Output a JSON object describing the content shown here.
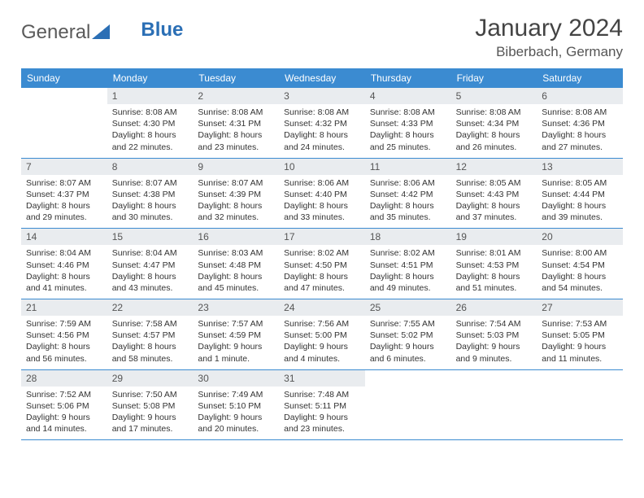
{
  "branding": {
    "logo_general": "General",
    "logo_blue": "Blue",
    "logo_color_general": "#5a5a5a",
    "logo_color_blue": "#2b6fb5",
    "triangle_color": "#2b6fb5"
  },
  "title": {
    "month": "January 2024",
    "location": "Biberbach, Germany",
    "month_fontsize": 30,
    "location_fontsize": 17,
    "text_color": "#444"
  },
  "calendar": {
    "header_bg": "#3b8bd1",
    "header_fg": "#ffffff",
    "daynum_bg": "#e9ecef",
    "daynum_fg": "#555555",
    "border_color": "#3b8bd1",
    "cell_text_color": "#333333",
    "cell_fontsize": 10.5,
    "days_of_week": [
      "Sunday",
      "Monday",
      "Tuesday",
      "Wednesday",
      "Thursday",
      "Friday",
      "Saturday"
    ],
    "weeks": [
      [
        {
          "n": "",
          "sunrise": "",
          "sunset": "",
          "daylight": ""
        },
        {
          "n": "1",
          "sunrise": "Sunrise: 8:08 AM",
          "sunset": "Sunset: 4:30 PM",
          "daylight": "Daylight: 8 hours and 22 minutes."
        },
        {
          "n": "2",
          "sunrise": "Sunrise: 8:08 AM",
          "sunset": "Sunset: 4:31 PM",
          "daylight": "Daylight: 8 hours and 23 minutes."
        },
        {
          "n": "3",
          "sunrise": "Sunrise: 8:08 AM",
          "sunset": "Sunset: 4:32 PM",
          "daylight": "Daylight: 8 hours and 24 minutes."
        },
        {
          "n": "4",
          "sunrise": "Sunrise: 8:08 AM",
          "sunset": "Sunset: 4:33 PM",
          "daylight": "Daylight: 8 hours and 25 minutes."
        },
        {
          "n": "5",
          "sunrise": "Sunrise: 8:08 AM",
          "sunset": "Sunset: 4:34 PM",
          "daylight": "Daylight: 8 hours and 26 minutes."
        },
        {
          "n": "6",
          "sunrise": "Sunrise: 8:08 AM",
          "sunset": "Sunset: 4:36 PM",
          "daylight": "Daylight: 8 hours and 27 minutes."
        }
      ],
      [
        {
          "n": "7",
          "sunrise": "Sunrise: 8:07 AM",
          "sunset": "Sunset: 4:37 PM",
          "daylight": "Daylight: 8 hours and 29 minutes."
        },
        {
          "n": "8",
          "sunrise": "Sunrise: 8:07 AM",
          "sunset": "Sunset: 4:38 PM",
          "daylight": "Daylight: 8 hours and 30 minutes."
        },
        {
          "n": "9",
          "sunrise": "Sunrise: 8:07 AM",
          "sunset": "Sunset: 4:39 PM",
          "daylight": "Daylight: 8 hours and 32 minutes."
        },
        {
          "n": "10",
          "sunrise": "Sunrise: 8:06 AM",
          "sunset": "Sunset: 4:40 PM",
          "daylight": "Daylight: 8 hours and 33 minutes."
        },
        {
          "n": "11",
          "sunrise": "Sunrise: 8:06 AM",
          "sunset": "Sunset: 4:42 PM",
          "daylight": "Daylight: 8 hours and 35 minutes."
        },
        {
          "n": "12",
          "sunrise": "Sunrise: 8:05 AM",
          "sunset": "Sunset: 4:43 PM",
          "daylight": "Daylight: 8 hours and 37 minutes."
        },
        {
          "n": "13",
          "sunrise": "Sunrise: 8:05 AM",
          "sunset": "Sunset: 4:44 PM",
          "daylight": "Daylight: 8 hours and 39 minutes."
        }
      ],
      [
        {
          "n": "14",
          "sunrise": "Sunrise: 8:04 AM",
          "sunset": "Sunset: 4:46 PM",
          "daylight": "Daylight: 8 hours and 41 minutes."
        },
        {
          "n": "15",
          "sunrise": "Sunrise: 8:04 AM",
          "sunset": "Sunset: 4:47 PM",
          "daylight": "Daylight: 8 hours and 43 minutes."
        },
        {
          "n": "16",
          "sunrise": "Sunrise: 8:03 AM",
          "sunset": "Sunset: 4:48 PM",
          "daylight": "Daylight: 8 hours and 45 minutes."
        },
        {
          "n": "17",
          "sunrise": "Sunrise: 8:02 AM",
          "sunset": "Sunset: 4:50 PM",
          "daylight": "Daylight: 8 hours and 47 minutes."
        },
        {
          "n": "18",
          "sunrise": "Sunrise: 8:02 AM",
          "sunset": "Sunset: 4:51 PM",
          "daylight": "Daylight: 8 hours and 49 minutes."
        },
        {
          "n": "19",
          "sunrise": "Sunrise: 8:01 AM",
          "sunset": "Sunset: 4:53 PM",
          "daylight": "Daylight: 8 hours and 51 minutes."
        },
        {
          "n": "20",
          "sunrise": "Sunrise: 8:00 AM",
          "sunset": "Sunset: 4:54 PM",
          "daylight": "Daylight: 8 hours and 54 minutes."
        }
      ],
      [
        {
          "n": "21",
          "sunrise": "Sunrise: 7:59 AM",
          "sunset": "Sunset: 4:56 PM",
          "daylight": "Daylight: 8 hours and 56 minutes."
        },
        {
          "n": "22",
          "sunrise": "Sunrise: 7:58 AM",
          "sunset": "Sunset: 4:57 PM",
          "daylight": "Daylight: 8 hours and 58 minutes."
        },
        {
          "n": "23",
          "sunrise": "Sunrise: 7:57 AM",
          "sunset": "Sunset: 4:59 PM",
          "daylight": "Daylight: 9 hours and 1 minute."
        },
        {
          "n": "24",
          "sunrise": "Sunrise: 7:56 AM",
          "sunset": "Sunset: 5:00 PM",
          "daylight": "Daylight: 9 hours and 4 minutes."
        },
        {
          "n": "25",
          "sunrise": "Sunrise: 7:55 AM",
          "sunset": "Sunset: 5:02 PM",
          "daylight": "Daylight: 9 hours and 6 minutes."
        },
        {
          "n": "26",
          "sunrise": "Sunrise: 7:54 AM",
          "sunset": "Sunset: 5:03 PM",
          "daylight": "Daylight: 9 hours and 9 minutes."
        },
        {
          "n": "27",
          "sunrise": "Sunrise: 7:53 AM",
          "sunset": "Sunset: 5:05 PM",
          "daylight": "Daylight: 9 hours and 11 minutes."
        }
      ],
      [
        {
          "n": "28",
          "sunrise": "Sunrise: 7:52 AM",
          "sunset": "Sunset: 5:06 PM",
          "daylight": "Daylight: 9 hours and 14 minutes."
        },
        {
          "n": "29",
          "sunrise": "Sunrise: 7:50 AM",
          "sunset": "Sunset: 5:08 PM",
          "daylight": "Daylight: 9 hours and 17 minutes."
        },
        {
          "n": "30",
          "sunrise": "Sunrise: 7:49 AM",
          "sunset": "Sunset: 5:10 PM",
          "daylight": "Daylight: 9 hours and 20 minutes."
        },
        {
          "n": "31",
          "sunrise": "Sunrise: 7:48 AM",
          "sunset": "Sunset: 5:11 PM",
          "daylight": "Daylight: 9 hours and 23 minutes."
        },
        {
          "n": "",
          "sunrise": "",
          "sunset": "",
          "daylight": ""
        },
        {
          "n": "",
          "sunrise": "",
          "sunset": "",
          "daylight": ""
        },
        {
          "n": "",
          "sunrise": "",
          "sunset": "",
          "daylight": ""
        }
      ]
    ]
  }
}
